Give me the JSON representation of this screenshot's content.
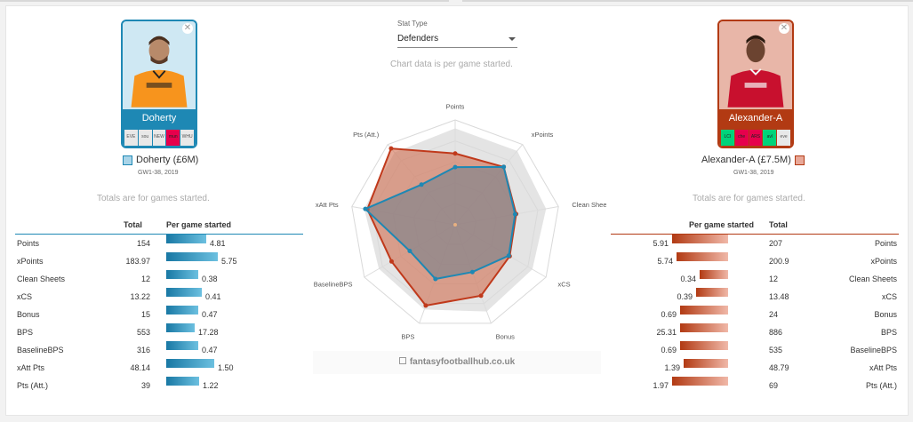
{
  "stat_type": {
    "label": "Stat Type",
    "selected": "Defenders"
  },
  "chart_note": "Chart data is per game started.",
  "totals_note": "Totals are for games started.",
  "watermark": "fantasyfootballhub.co.uk",
  "colors": {
    "player1": "#1e88b4",
    "player2": "#b23a13"
  },
  "player1": {
    "name": "Doherty",
    "legend": "Doherty (£6M)",
    "period": "GW1-38, 2019",
    "fixtures": [
      {
        "code": "EVE",
        "color": "#e8e8e8"
      },
      {
        "code": "sou",
        "color": "#e8e8e8"
      },
      {
        "code": "NEW",
        "color": "#e8e8e8"
      },
      {
        "code": "mun",
        "color": "#e6004c"
      },
      {
        "code": "WHU",
        "color": "#e8e8e8"
      }
    ]
  },
  "player2": {
    "name": "Alexander-A",
    "legend": "Alexander-A (£7.5M)",
    "period": "GW1-38, 2019",
    "fixtures": [
      {
        "code": "LCI",
        "color": "#00d37a"
      },
      {
        "code": "che",
        "color": "#e6004c"
      },
      {
        "code": "ARS",
        "color": "#e6004c"
      },
      {
        "code": "avl",
        "color": "#00d37a"
      },
      {
        "code": "eve",
        "color": "#e8e8e8"
      }
    ]
  },
  "table": {
    "col_total": "Total",
    "col_per_game": "Per game started",
    "rows": [
      {
        "label": "Points",
        "p1_total": "154",
        "p1_per": "4.81",
        "p2_total": "207",
        "p2_per": "5.91"
      },
      {
        "label": "xPoints",
        "p1_total": "183.97",
        "p1_per": "5.75",
        "p2_total": "200.9",
        "p2_per": "5.74"
      },
      {
        "label": "Clean Sheets",
        "p1_total": "12",
        "p1_per": "0.38",
        "p2_total": "12",
        "p2_per": "0.34"
      },
      {
        "label": "xCS",
        "p1_total": "13.22",
        "p1_per": "0.41",
        "p2_total": "13.48",
        "p2_per": "0.39"
      },
      {
        "label": "Bonus",
        "p1_total": "15",
        "p1_per": "0.47",
        "p2_total": "24",
        "p2_per": "0.69"
      },
      {
        "label": "BPS",
        "p1_total": "553",
        "p1_per": "17.28",
        "p2_total": "886",
        "p2_per": "25.31"
      },
      {
        "label": "BaselineBPS",
        "p1_total": "316",
        "p1_per": "0.47",
        "p2_total": "535",
        "p2_per": "0.69"
      },
      {
        "label": "xAtt Pts",
        "p1_total": "48.14",
        "p1_per": "1.50",
        "p2_total": "48.79",
        "p2_per": "1.39"
      },
      {
        "label": "Pts (Att.)",
        "p1_total": "39",
        "p1_per": "1.22",
        "p2_total": "69",
        "p2_per": "1.97"
      }
    ],
    "p1_bar_fraction": [
      0.62,
      0.8,
      0.5,
      0.55,
      0.5,
      0.45,
      0.5,
      0.75,
      0.52
    ],
    "p2_bar_fraction": [
      0.88,
      0.8,
      0.45,
      0.5,
      0.75,
      0.75,
      0.75,
      0.7,
      0.88
    ]
  },
  "chart_data": {
    "type": "radar",
    "axes": [
      "Points",
      "xPoints",
      "Clean Sheets",
      "xCS",
      "Bonus",
      "BPS",
      "BaselineBPS",
      "xAtt Pts",
      "Pts (Att.)"
    ],
    "range": [
      0,
      1
    ],
    "series": [
      {
        "name": "Alexander-A",
        "values": [
          0.68,
          0.72,
          0.59,
          0.6,
          0.72,
          0.82,
          0.7,
          0.85,
          0.95
        ]
      },
      {
        "name": "Doherty",
        "values": [
          0.55,
          0.72,
          0.58,
          0.59,
          0.48,
          0.55,
          0.5,
          0.87,
          0.5
        ]
      }
    ],
    "reference": [
      0.92,
      0.92,
      0.88,
      0.85,
      0.88,
      0.86,
      0.84,
      0.88,
      0.9
    ]
  }
}
